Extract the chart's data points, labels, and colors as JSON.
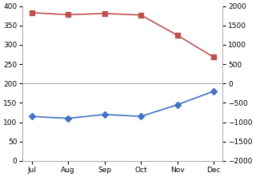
{
  "categories": [
    "Jul",
    "Aug",
    "Sep",
    "Oct",
    "Nov",
    "Dec"
  ],
  "blue_values": [
    115,
    110,
    120,
    115,
    145,
    180
  ],
  "red_values": [
    383,
    378,
    381,
    377,
    325,
    268
  ],
  "left_ylim": [
    0,
    400
  ],
  "right_ylim": [
    -2000,
    2000
  ],
  "left_yticks": [
    0,
    50,
    100,
    150,
    200,
    250,
    300,
    350,
    400
  ],
  "right_yticks": [
    -2000,
    -1500,
    -1000,
    -500,
    0,
    500,
    1000,
    1500,
    2000
  ],
  "blue_color": "#4472C4",
  "red_color": "#C0504D",
  "line_width": 1.2,
  "marker_blue": "D",
  "marker_red": "s",
  "marker_size": 4,
  "grid_color": "#AAAAAA",
  "bg_color": "#FFFFFF",
  "tick_fontsize": 6.5
}
